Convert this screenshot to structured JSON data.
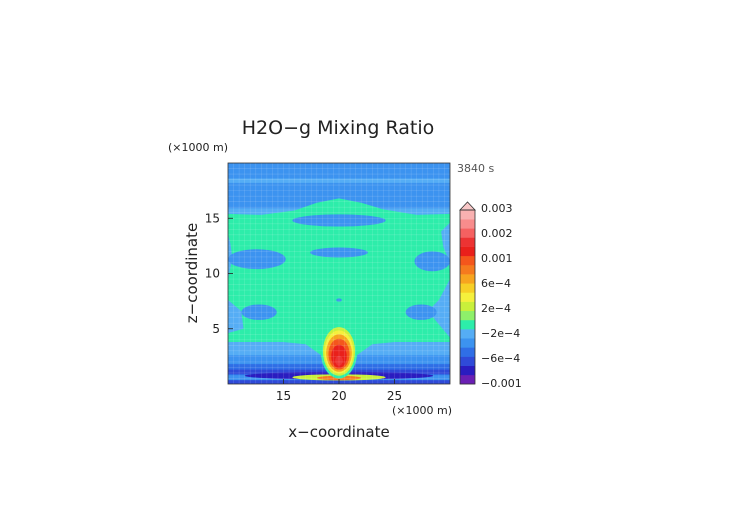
{
  "chart_data": {
    "type": "heatmap",
    "title": "H2O−g Mixing Ratio",
    "time_label": "3840 s",
    "xlabel": "x−coordinate",
    "ylabel": "z−coordinate",
    "x_unit": "(×1000 m)",
    "y_unit": "(×1000 m)",
    "xlim": [
      10,
      30
    ],
    "ylim": [
      0,
      20
    ],
    "x_ticks": [
      15,
      20,
      25
    ],
    "y_ticks": [
      5,
      10,
      15
    ],
    "x_tick_labels": [
      "15",
      "20",
      "25"
    ],
    "y_tick_labels": [
      "5",
      "10",
      "15"
    ],
    "colorbar": {
      "levels": [
        {
          "color": "#6a1fb4"
        },
        {
          "color": "#2a1cc0"
        },
        {
          "color": "#2f4ad8"
        },
        {
          "color": "#2f6ee6"
        },
        {
          "color": "#3c93f0"
        },
        {
          "color": "#55adf5"
        },
        {
          "color": "#2dedaa"
        },
        {
          "color": "#8ef06a"
        },
        {
          "color": "#c9f03b"
        },
        {
          "color": "#f5f03c"
        },
        {
          "color": "#f7cf26"
        },
        {
          "color": "#f7a41f"
        },
        {
          "color": "#f57a1e"
        },
        {
          "color": "#f4561c"
        },
        {
          "color": "#e9201b"
        },
        {
          "color": "#ec3333"
        },
        {
          "color": "#f56161"
        },
        {
          "color": "#f88c8c"
        },
        {
          "color": "#f9b1b1"
        }
      ],
      "labels": [
        "0.003",
        "0.002",
        "0.001",
        "6e−4",
        "2e−4",
        "−2e−4",
        "−6e−4",
        "−0.001"
      ],
      "over_color": "#f9c8c8"
    }
  }
}
